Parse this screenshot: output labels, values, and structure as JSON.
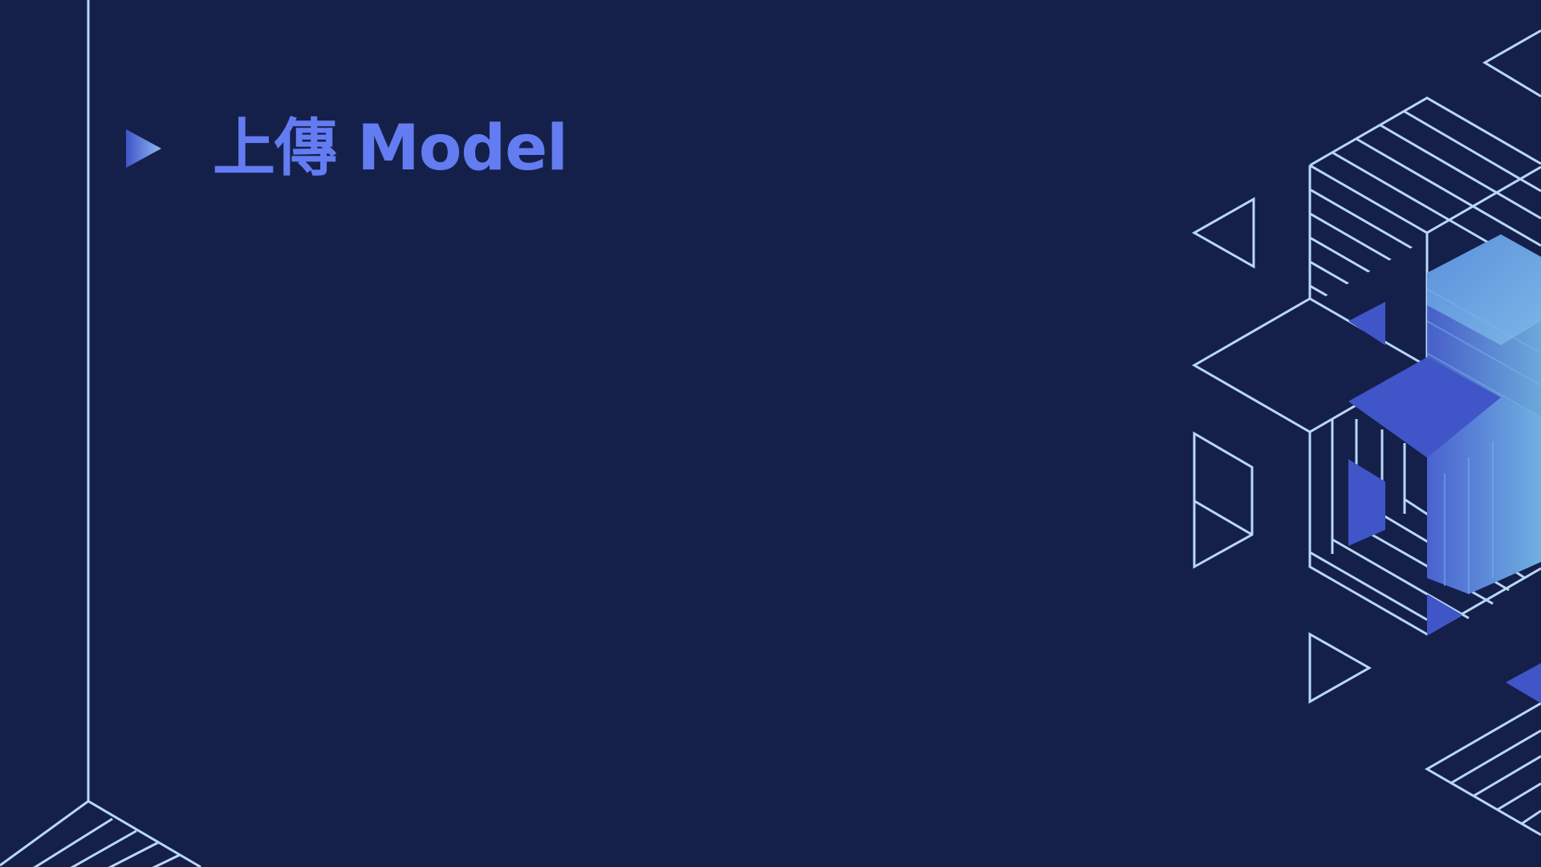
{
  "slide": {
    "title": "上傳 Model",
    "bullet_icon": "play-triangle-icon"
  },
  "colors": {
    "background": "#15204a",
    "title": "#637cf2",
    "line": "#b8d8f5",
    "accent_dark": "#3f55c8",
    "accent_mid": "#4d6fd4",
    "accent_light": "#6aa6e0"
  }
}
